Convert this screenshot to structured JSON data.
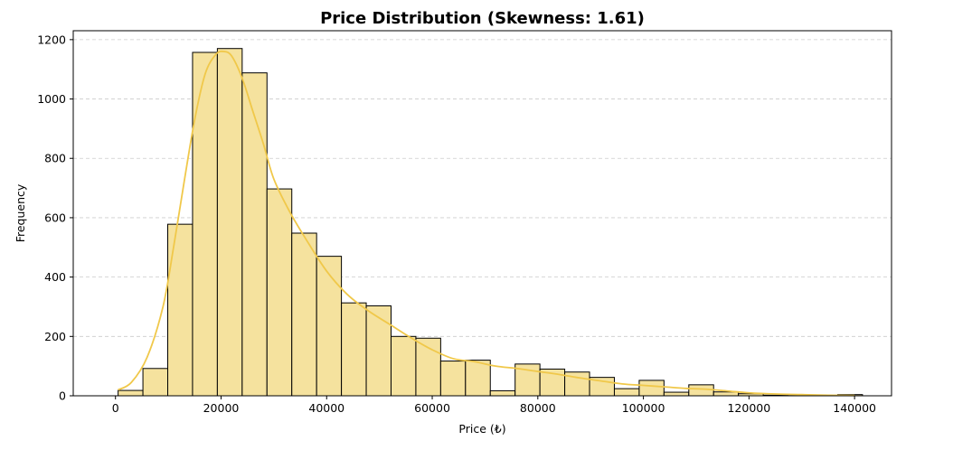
{
  "chart_data": {
    "type": "bar",
    "title": "Price Distribution (Skewness: 1.61)",
    "xlabel": "Price (₺)",
    "ylabel": "Frequency",
    "xlim": [
      -8000,
      147000
    ],
    "ylim": [
      0,
      1230
    ],
    "xticks": [
      0,
      20000,
      40000,
      60000,
      80000,
      100000,
      120000,
      140000
    ],
    "xtick_labels": [
      "0",
      "20000",
      "40000",
      "60000",
      "80000",
      "100000",
      "120000",
      "140000"
    ],
    "yticks": [
      0,
      200,
      400,
      600,
      800,
      1000,
      1200
    ],
    "ytick_labels": [
      "0",
      "200",
      "400",
      "600",
      "800",
      "1000",
      "1200"
    ],
    "grid": "y dashed",
    "colors": {
      "bar_fill": "#f5e29e",
      "bar_edge": "#000000",
      "kde": "#f0c84a",
      "grid": "#cccccc"
    },
    "bins": [
      {
        "x0": 500,
        "x1": 5200,
        "count": 18
      },
      {
        "x0": 5200,
        "x1": 9900,
        "count": 92
      },
      {
        "x0": 9900,
        "x1": 14600,
        "count": 578
      },
      {
        "x0": 14600,
        "x1": 19300,
        "count": 1157
      },
      {
        "x0": 19300,
        "x1": 24000,
        "count": 1170
      },
      {
        "x0": 24000,
        "x1": 28700,
        "count": 1088
      },
      {
        "x0": 28700,
        "x1": 33400,
        "count": 697
      },
      {
        "x0": 33400,
        "x1": 38100,
        "count": 548
      },
      {
        "x0": 38100,
        "x1": 42800,
        "count": 470
      },
      {
        "x0": 42800,
        "x1": 47500,
        "count": 313
      },
      {
        "x0": 47500,
        "x1": 52200,
        "count": 303
      },
      {
        "x0": 52200,
        "x1": 56900,
        "count": 200
      },
      {
        "x0": 56900,
        "x1": 61600,
        "count": 194
      },
      {
        "x0": 61600,
        "x1": 66300,
        "count": 117
      },
      {
        "x0": 66300,
        "x1": 71000,
        "count": 120
      },
      {
        "x0": 71000,
        "x1": 75700,
        "count": 17
      },
      {
        "x0": 75700,
        "x1": 80400,
        "count": 107
      },
      {
        "x0": 80400,
        "x1": 85100,
        "count": 90
      },
      {
        "x0": 85100,
        "x1": 89800,
        "count": 80
      },
      {
        "x0": 89800,
        "x1": 94500,
        "count": 62
      },
      {
        "x0": 94500,
        "x1": 99200,
        "count": 24
      },
      {
        "x0": 99200,
        "x1": 103900,
        "count": 52
      },
      {
        "x0": 103900,
        "x1": 108600,
        "count": 12
      },
      {
        "x0": 108600,
        "x1": 113300,
        "count": 37
      },
      {
        "x0": 113300,
        "x1": 118000,
        "count": 13
      },
      {
        "x0": 118000,
        "x1": 122700,
        "count": 7
      },
      {
        "x0": 122700,
        "x1": 127400,
        "count": 2
      },
      {
        "x0": 127400,
        "x1": 132100,
        "count": 1
      },
      {
        "x0": 132100,
        "x1": 136800,
        "count": 1
      },
      {
        "x0": 136800,
        "x1": 141500,
        "count": 4
      }
    ],
    "kde_series": {
      "x": [
        500,
        3000,
        6000,
        9000,
        11000,
        13000,
        15000,
        17000,
        19000,
        20500,
        22000,
        24000,
        26000,
        28000,
        30000,
        33000,
        36000,
        40000,
        44000,
        48000,
        52000,
        56000,
        60000,
        64000,
        68000,
        72000,
        76000,
        80000,
        84000,
        88000,
        92000,
        96000,
        100000,
        104000,
        108000,
        112000,
        116000,
        120000,
        125000,
        130000,
        135000,
        140000
      ],
      "y": [
        20,
        45,
        130,
        300,
        500,
        720,
        930,
        1085,
        1150,
        1160,
        1145,
        1070,
        960,
        850,
        730,
        620,
        530,
        420,
        340,
        285,
        240,
        195,
        155,
        125,
        115,
        100,
        92,
        82,
        72,
        60,
        50,
        40,
        35,
        30,
        25,
        22,
        16,
        10,
        6,
        4,
        2,
        1
      ]
    }
  }
}
